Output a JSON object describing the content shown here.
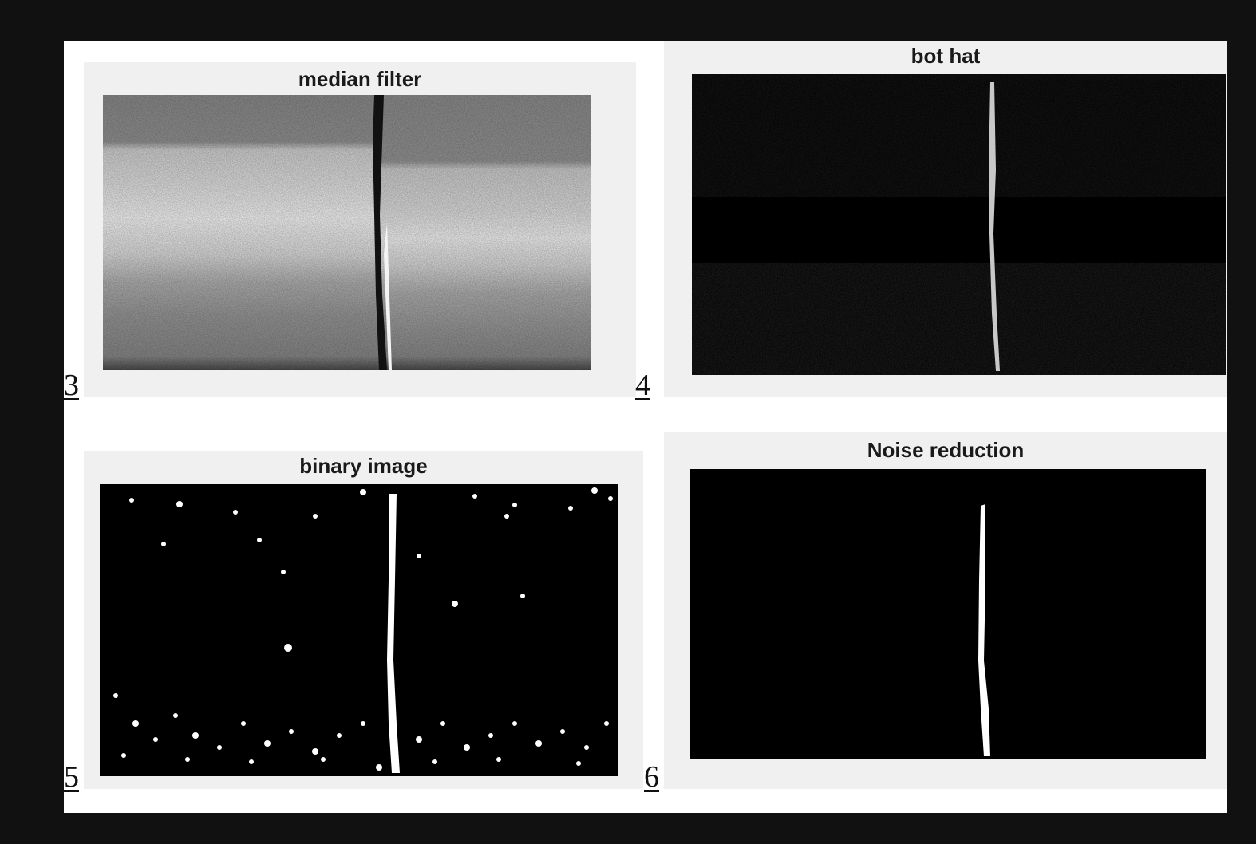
{
  "panels": [
    {
      "title": "median filter",
      "number": "3"
    },
    {
      "title": "bot hat",
      "number": "4"
    },
    {
      "title": "binary image",
      "number": "5"
    },
    {
      "title": "Noise reduction",
      "number": "6"
    }
  ],
  "colors": {
    "page_background": "#111111",
    "sheet": "#ffffff",
    "panel": "#f0f0f0",
    "image_black": "#000000",
    "crack_white": "#ffffff"
  }
}
